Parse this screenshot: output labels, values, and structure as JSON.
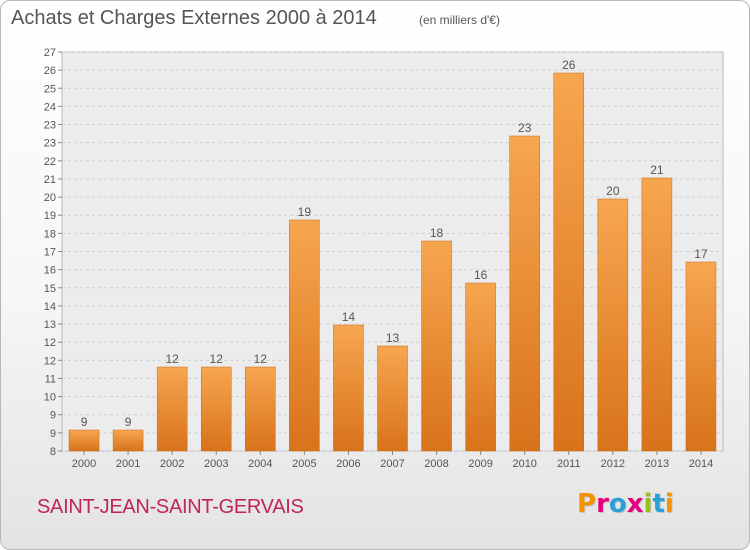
{
  "header": {
    "title": "Achats et Charges Externes 2000 à 2014",
    "subtitle": "(en milliers d'€)"
  },
  "footer": {
    "commune": "SAINT-JEAN-SAINT-GERVAIS",
    "logo_text": "Proxiti",
    "logo_colors": [
      "#f39200",
      "#e5007d",
      "#2a9fd8",
      "#e5007d",
      "#95c11f",
      "#2a9fd8",
      "#f39200"
    ]
  },
  "chart_data": {
    "type": "bar",
    "categories": [
      "2000",
      "2001",
      "2002",
      "2003",
      "2004",
      "2005",
      "2006",
      "2007",
      "2008",
      "2009",
      "2010",
      "2011",
      "2012",
      "2013",
      "2014"
    ],
    "values": [
      9,
      9,
      12,
      12,
      12,
      19,
      14,
      13,
      18,
      16,
      23,
      26,
      20,
      21,
      17
    ],
    "data_labels": [
      "9",
      "9",
      "12",
      "12",
      "12",
      "19",
      "14",
      "13",
      "18",
      "16",
      "23",
      "26",
      "20",
      "21",
      "17"
    ],
    "yticks": [
      "8",
      "9",
      "9",
      "10",
      "11",
      "12",
      "12",
      "13",
      "14",
      "15",
      "16",
      "17",
      "18",
      "19",
      "20",
      "21",
      "22",
      "23",
      "23",
      "24",
      "25",
      "26",
      "27"
    ],
    "ylim": [
      8,
      27
    ],
    "bar_color": "#f0922f",
    "grid": true
  }
}
